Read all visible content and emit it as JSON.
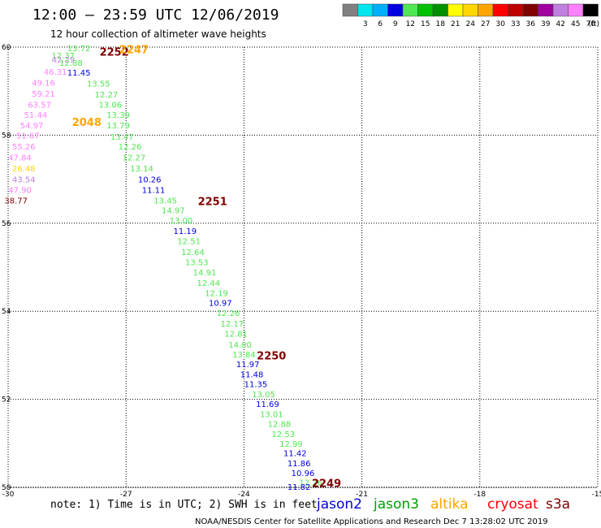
{
  "header": {
    "title": "12:00 — 23:59 UTC 12/06/2019",
    "subtitle": "12 hour collection of altimeter wave heights"
  },
  "legend": {
    "unit_label": "(ft)",
    "items": [
      {
        "label": "",
        "color": "#808080"
      },
      {
        "label": "3",
        "color": "#00e5ee"
      },
      {
        "label": "6",
        "color": "#00b0ff"
      },
      {
        "label": "9",
        "color": "#0000e0"
      },
      {
        "label": "12",
        "color": "#50e850"
      },
      {
        "label": "15",
        "color": "#00c000"
      },
      {
        "label": "18",
        "color": "#009000"
      },
      {
        "label": "21",
        "color": "#ffff00"
      },
      {
        "label": "24",
        "color": "#ffd700"
      },
      {
        "label": "27",
        "color": "#ffa500"
      },
      {
        "label": "30",
        "color": "#ff0000"
      },
      {
        "label": "33",
        "color": "#c00000"
      },
      {
        "label": "36",
        "color": "#800000"
      },
      {
        "label": "39",
        "color": "#a000a0"
      },
      {
        "label": "42",
        "color": "#c080e0"
      },
      {
        "label": "45",
        "color": "#ff80ff"
      },
      {
        "label": "70",
        "color": "#000000"
      }
    ]
  },
  "footer": {
    "note": "note:  1) Time is in UTC;  2) SWH is in feet",
    "credit": "NOAA/NESDIS Center for Satellite Applications and Research    Dec  7 13:28:02 UTC 2019",
    "satellites": [
      {
        "name": "jason2",
        "color": "#0000e0"
      },
      {
        "name": "jason3",
        "color": "#00a000"
      },
      {
        "name": "altika",
        "color": "#ffa500"
      },
      {
        "name": "cryosat",
        "color": "#ff0000"
      },
      {
        "name": "s3a",
        "color": "#800000"
      }
    ]
  },
  "chart_data": {
    "type": "scatter",
    "xlim": [
      -30,
      -15
    ],
    "ylim": [
      50,
      60
    ],
    "xticks": [
      "-30",
      "-27",
      "-24",
      "-21",
      "-18",
      "-15"
    ],
    "yticks": [
      "50",
      "52",
      "54",
      "56",
      "58",
      "60"
    ],
    "grid": true,
    "grid_style": "dotted",
    "colors": {
      "jason2": "#0000e0",
      "jason3": "#50e850",
      "altika_light": "#c080e0",
      "altika_pink": "#ff80ff",
      "altika_yellow": "#ffd700",
      "s3a": "#800000",
      "time_orange": "#ffa500"
    },
    "time_labels": [
      {
        "text": "2252",
        "lon": -27.3,
        "lat": 59.9,
        "color": "#800000"
      },
      {
        "text": "2247",
        "lon": -26.8,
        "lat": 59.95,
        "color": "#ffa500"
      },
      {
        "text": "2048",
        "lon": -28.0,
        "lat": 58.3,
        "color": "#ffa500"
      },
      {
        "text": "2251",
        "lon": -24.8,
        "lat": 56.5,
        "color": "#800000"
      },
      {
        "text": "2250",
        "lon": -23.3,
        "lat": 53.0,
        "color": "#800000"
      },
      {
        "text": "2249",
        "lon": -21.9,
        "lat": 50.1,
        "color": "#800000"
      }
    ],
    "points": [
      {
        "v": "13.72",
        "lon": -28.2,
        "lat": 59.98,
        "color": "#50e850"
      },
      {
        "v": "12.37",
        "lon": -28.6,
        "lat": 59.82,
        "color": "#50e850"
      },
      {
        "v": "42.29",
        "lon": -28.6,
        "lat": 59.72,
        "color": "#c080e0"
      },
      {
        "v": "12.88",
        "lon": -28.4,
        "lat": 59.65,
        "color": "#50e850"
      },
      {
        "v": "46.31",
        "lon": -28.8,
        "lat": 59.45,
        "color": "#ff80ff"
      },
      {
        "v": "11.45",
        "lon": -28.2,
        "lat": 59.43,
        "color": "#0000e0"
      },
      {
        "v": "49.16",
        "lon": -29.1,
        "lat": 59.2,
        "color": "#ff80ff"
      },
      {
        "v": "13.55",
        "lon": -27.7,
        "lat": 59.18,
        "color": "#50e850"
      },
      {
        "v": "59.21",
        "lon": -29.1,
        "lat": 58.95,
        "color": "#ff80ff"
      },
      {
        "v": "12.27",
        "lon": -27.5,
        "lat": 58.93,
        "color": "#50e850"
      },
      {
        "v": "63.57",
        "lon": -29.2,
        "lat": 58.7,
        "color": "#ff80ff"
      },
      {
        "v": "13.06",
        "lon": -27.4,
        "lat": 58.7,
        "color": "#50e850"
      },
      {
        "v": "51.44",
        "lon": -29.3,
        "lat": 58.47,
        "color": "#ff80ff"
      },
      {
        "v": "13.39",
        "lon": -27.2,
        "lat": 58.47,
        "color": "#50e850"
      },
      {
        "v": "54.97",
        "lon": -29.4,
        "lat": 58.23,
        "color": "#ff80ff"
      },
      {
        "v": "13.79",
        "lon": -27.2,
        "lat": 58.23,
        "color": "#50e850"
      },
      {
        "v": "51.67",
        "lon": -29.5,
        "lat": 58.0,
        "color": "#ff80ff"
      },
      {
        "v": "13.47",
        "lon": -27.1,
        "lat": 57.97,
        "color": "#50e850"
      },
      {
        "v": "55.26",
        "lon": -29.6,
        "lat": 57.75,
        "color": "#ff80ff"
      },
      {
        "v": "12.26",
        "lon": -26.9,
        "lat": 57.75,
        "color": "#50e850"
      },
      {
        "v": "47.84",
        "lon": -29.7,
        "lat": 57.5,
        "color": "#ff80ff"
      },
      {
        "v": "12.27",
        "lon": -26.8,
        "lat": 57.5,
        "color": "#50e850"
      },
      {
        "v": "26.48",
        "lon": -29.6,
        "lat": 57.25,
        "color": "#ffd700"
      },
      {
        "v": "13.14",
        "lon": -26.6,
        "lat": 57.25,
        "color": "#50e850"
      },
      {
        "v": "43.54",
        "lon": -29.6,
        "lat": 57.0,
        "color": "#c080e0"
      },
      {
        "v": "10.26",
        "lon": -26.4,
        "lat": 57.0,
        "color": "#0000e0"
      },
      {
        "v": "47.90",
        "lon": -29.7,
        "lat": 56.76,
        "color": "#ff80ff"
      },
      {
        "v": "11.11",
        "lon": -26.3,
        "lat": 56.76,
        "color": "#0000e0"
      },
      {
        "v": "38.77",
        "lon": -29.8,
        "lat": 56.52,
        "color": "#800000"
      },
      {
        "v": "13.45",
        "lon": -26.0,
        "lat": 56.52,
        "color": "#50e850"
      },
      {
        "v": "14.97",
        "lon": -25.8,
        "lat": 56.3,
        "color": "#50e850"
      },
      {
        "v": "13.00",
        "lon": -25.6,
        "lat": 56.07,
        "color": "#50e850"
      },
      {
        "v": "11.19",
        "lon": -25.5,
        "lat": 55.83,
        "color": "#0000e0"
      },
      {
        "v": "12.51",
        "lon": -25.4,
        "lat": 55.6,
        "color": "#50e850"
      },
      {
        "v": "12.64",
        "lon": -25.3,
        "lat": 55.35,
        "color": "#50e850"
      },
      {
        "v": "13.53",
        "lon": -25.2,
        "lat": 55.12,
        "color": "#50e850"
      },
      {
        "v": "14.91",
        "lon": -25.0,
        "lat": 54.89,
        "color": "#50e850"
      },
      {
        "v": "12.44",
        "lon": -24.9,
        "lat": 54.65,
        "color": "#50e850"
      },
      {
        "v": "12.19",
        "lon": -24.7,
        "lat": 54.42,
        "color": "#50e850"
      },
      {
        "v": "10.97",
        "lon": -24.6,
        "lat": 54.2,
        "color": "#0000e0"
      },
      {
        "v": "12.26",
        "lon": -24.4,
        "lat": 53.97,
        "color": "#50e850"
      },
      {
        "v": "12.17",
        "lon": -24.3,
        "lat": 53.73,
        "color": "#50e850"
      },
      {
        "v": "12.81",
        "lon": -24.2,
        "lat": 53.5,
        "color": "#50e850"
      },
      {
        "v": "14.00",
        "lon": -24.1,
        "lat": 53.25,
        "color": "#50e850"
      },
      {
        "v": "13.84",
        "lon": -24.0,
        "lat": 53.03,
        "color": "#50e850"
      },
      {
        "v": "11.97",
        "lon": -23.9,
        "lat": 52.8,
        "color": "#0000e0"
      },
      {
        "v": "11.48",
        "lon": -23.8,
        "lat": 52.57,
        "color": "#0000e0"
      },
      {
        "v": "11.35",
        "lon": -23.7,
        "lat": 52.35,
        "color": "#0000e0"
      },
      {
        "v": "13.05",
        "lon": -23.5,
        "lat": 52.12,
        "color": "#50e850"
      },
      {
        "v": "11.69",
        "lon": -23.4,
        "lat": 51.9,
        "color": "#0000e0"
      },
      {
        "v": "13.01",
        "lon": -23.3,
        "lat": 51.67,
        "color": "#50e850"
      },
      {
        "v": "12.88",
        "lon": -23.1,
        "lat": 51.45,
        "color": "#50e850"
      },
      {
        "v": "12.53",
        "lon": -23.0,
        "lat": 51.22,
        "color": "#50e850"
      },
      {
        "v": "12.99",
        "lon": -22.8,
        "lat": 51.0,
        "color": "#50e850"
      },
      {
        "v": "11.42",
        "lon": -22.7,
        "lat": 50.78,
        "color": "#0000e0"
      },
      {
        "v": "11.86",
        "lon": -22.6,
        "lat": 50.55,
        "color": "#0000e0"
      },
      {
        "v": "10.96",
        "lon": -22.5,
        "lat": 50.33,
        "color": "#0000e0"
      },
      {
        "v": "12.26",
        "lon": -22.3,
        "lat": 50.12,
        "color": "#50e850"
      },
      {
        "v": "11.82",
        "lon": -22.6,
        "lat": 50.02,
        "color": "#0000e0"
      }
    ]
  }
}
